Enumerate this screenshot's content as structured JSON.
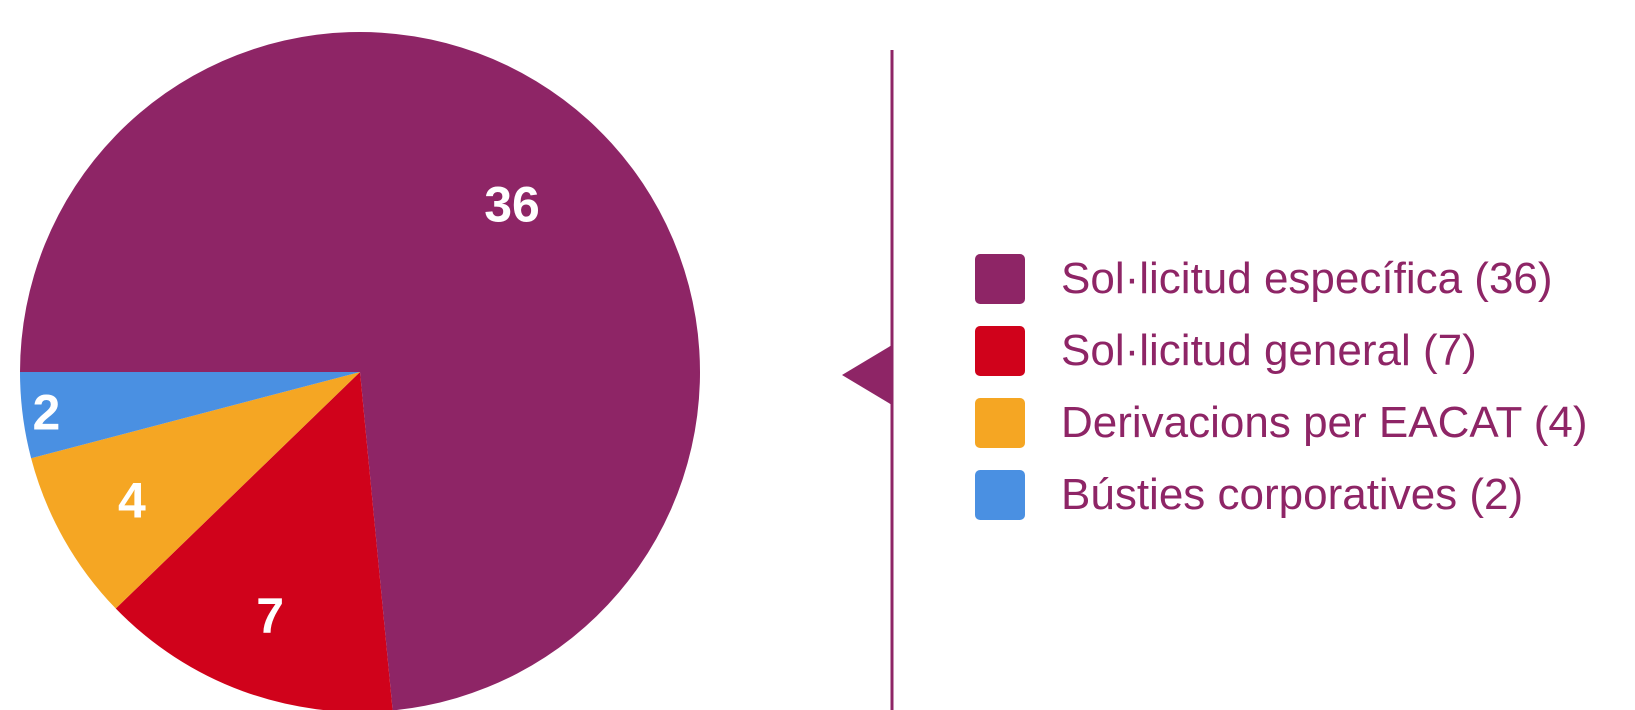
{
  "chart_data": {
    "type": "pie",
    "slices": [
      {
        "label": "Sol·licitud específica (36)",
        "value": 36,
        "color": "#8E2566"
      },
      {
        "label": "Sol·licitud general (7)",
        "value": 7,
        "color": "#D0021B"
      },
      {
        "label": "Derivacions per EACAT (4)",
        "value": 4,
        "color": "#F5A623"
      },
      {
        "label": "Bústies corporatives (2)",
        "value": 2,
        "color": "#4A90E2"
      }
    ],
    "data_labels": [
      "36",
      "7",
      "4",
      "2"
    ],
    "data_label_color": "#FFFFFF",
    "legend_text_color": "#8E2566",
    "divider_color": "#8E2566",
    "legend_position": "right"
  }
}
